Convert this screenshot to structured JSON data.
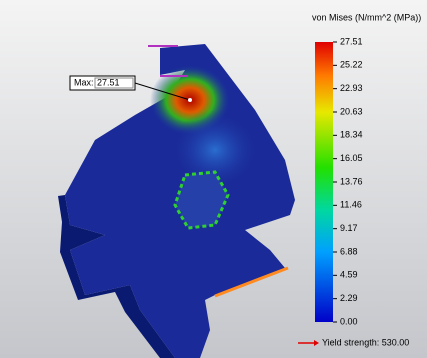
{
  "legend": {
    "title": "von Mises (N/mm^2 (MPa))",
    "ticks": [
      "27.51",
      "25.22",
      "22.93",
      "20.63",
      "18.34",
      "16.05",
      "13.76",
      "11.46",
      "9.17",
      "6.88",
      "4.59",
      "2.29",
      "0.00"
    ]
  },
  "probe": {
    "label": "Max:",
    "value": "27.51"
  },
  "yield": {
    "label": "Yield strength: 530.00"
  }
}
